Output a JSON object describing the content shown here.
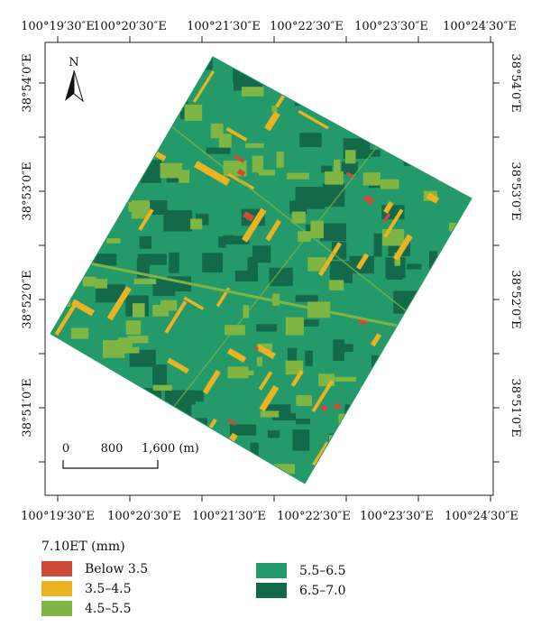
{
  "top_axis": [
    "100°19′30″E",
    "100°20′30″E",
    "100°21′30″E",
    "100°22′30″E",
    "100°23′30″E",
    "100°24′30″E"
  ],
  "bottom_axis": [
    "100°19′30″E",
    "100°20′30″E",
    "100°21′30″E",
    "100°22′30″E",
    "100°23′30″E",
    "100°24′30″E"
  ],
  "left_axis": [
    "38°54′0″E",
    "38°53′0″E",
    "38°52′0″E",
    "38°51′0″E"
  ],
  "right_axis": [
    "38°54′0″E",
    "38°53′0″E",
    "38°52′0″E",
    "38°51′0″E"
  ],
  "north_label": "N",
  "scale_bar": {
    "labels": [
      "0",
      "800",
      "1,600 (m)"
    ]
  },
  "legend": {
    "title": "7.10ET (mm)",
    "items": [
      {
        "label": "Below 3.5",
        "color": "#cf4a37"
      },
      {
        "label": "3.5–4.5",
        "color": "#e9b321"
      },
      {
        "label": "4.5–5.5",
        "color": "#7fb543"
      },
      {
        "label": "5.5–6.5",
        "color": "#249a6a"
      },
      {
        "label": "6.5–7.0",
        "color": "#13694a"
      }
    ]
  },
  "colors": {
    "c1": "#cf4a37",
    "c2": "#e9b321",
    "c3": "#7fb543",
    "c4": "#249a6a",
    "c5": "#13694a"
  }
}
